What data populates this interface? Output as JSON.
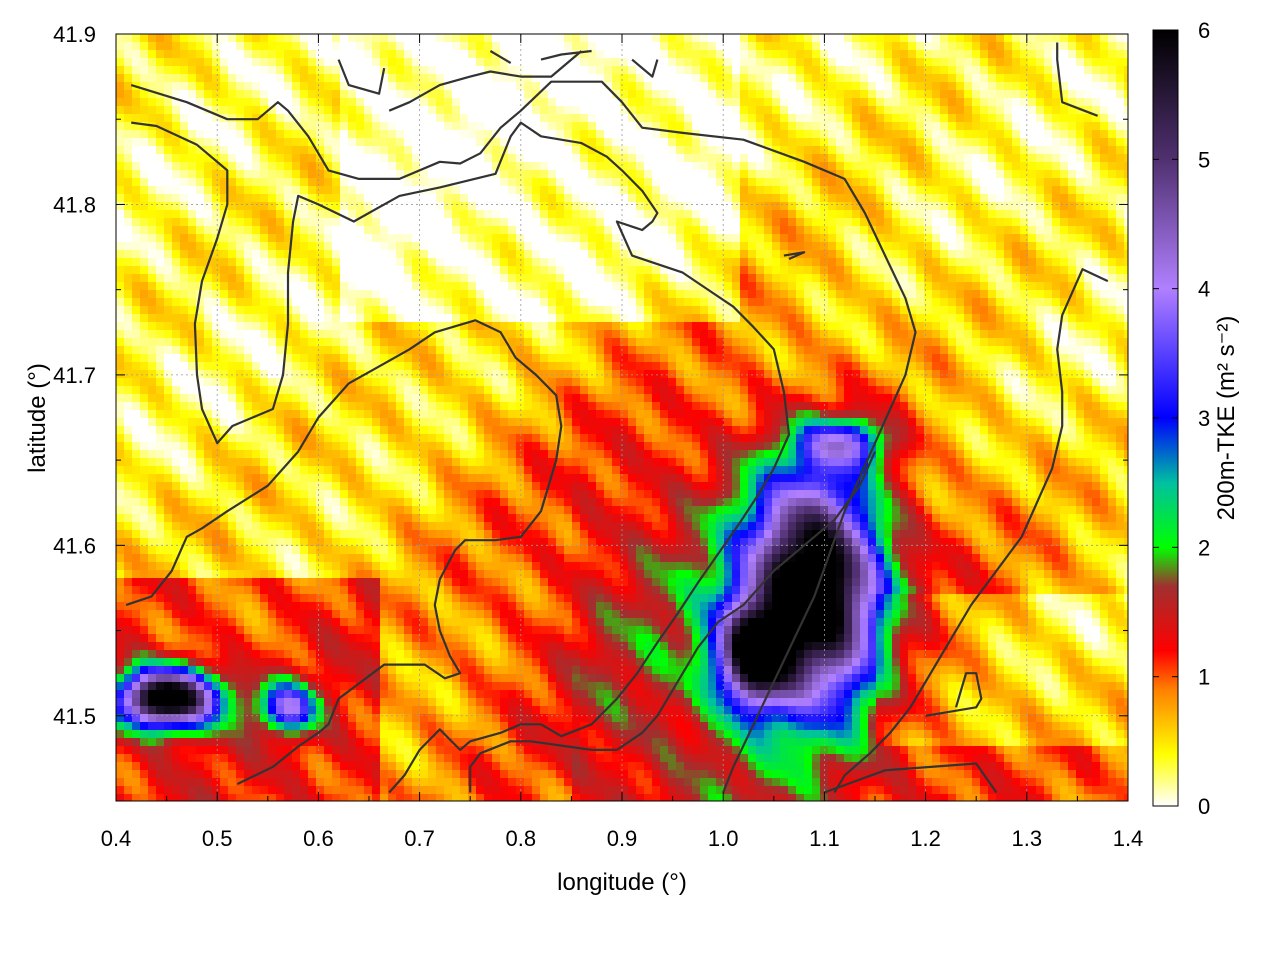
{
  "chart_data": {
    "type": "heatmap",
    "xlabel": "longitude (°)",
    "ylabel": "latitude (°)",
    "xlim": [
      0.4,
      1.4
    ],
    "ylim": [
      41.45,
      41.9
    ],
    "x_ticks": [
      "0.4",
      "0.5",
      "0.6",
      "0.7",
      "0.8",
      "0.9",
      "1.0",
      "1.1",
      "1.2",
      "1.3",
      "1.4"
    ],
    "y_ticks": [
      "41.5",
      "41.6",
      "41.7",
      "41.8",
      "41.9"
    ],
    "grid": true,
    "colorbar": {
      "label": "200m-TKE (m² s⁻²)",
      "range": [
        0,
        6
      ],
      "ticks": [
        "0",
        "1",
        "2",
        "3",
        "4",
        "5",
        "6"
      ],
      "stops": [
        {
          "v": 0.0,
          "color": "#ffffff"
        },
        {
          "v": 0.4,
          "color": "#ffff00"
        },
        {
          "v": 0.9,
          "color": "#ff8000"
        },
        {
          "v": 1.2,
          "color": "#ff0000"
        },
        {
          "v": 1.7,
          "color": "#a03030"
        },
        {
          "v": 2.0,
          "color": "#00ff00"
        },
        {
          "v": 2.5,
          "color": "#00c0a0"
        },
        {
          "v": 3.0,
          "color": "#0000ff"
        },
        {
          "v": 4.0,
          "color": "#b080ff"
        },
        {
          "v": 5.0,
          "color": "#503070"
        },
        {
          "v": 6.0,
          "color": "#000000"
        }
      ]
    },
    "features": [
      {
        "lon": 1.09,
        "lat": 41.575,
        "peak": 5.6,
        "sx": 0.045,
        "sy": 0.045
      },
      {
        "lon": 1.03,
        "lat": 41.535,
        "peak": 4.3,
        "sx": 0.025,
        "sy": 0.02
      },
      {
        "lon": 0.45,
        "lat": 41.51,
        "peak": 5.8,
        "sx": 0.035,
        "sy": 0.012
      },
      {
        "lon": 0.57,
        "lat": 41.505,
        "peak": 2.6,
        "sx": 0.02,
        "sy": 0.01
      },
      {
        "lon": 1.12,
        "lat": 41.66,
        "peak": 2.2,
        "sx": 0.03,
        "sy": 0.01
      }
    ],
    "contours": [
      [
        [
          0.415,
          41.87
        ],
        [
          0.47,
          41.86
        ],
        [
          0.51,
          41.85
        ],
        [
          0.54,
          41.85
        ],
        [
          0.56,
          41.86
        ],
        [
          0.57,
          41.855
        ],
        [
          0.59,
          41.84
        ],
        [
          0.61,
          41.82
        ],
        [
          0.64,
          41.815
        ],
        [
          0.68,
          41.815
        ],
        [
          0.72,
          41.825
        ],
        [
          0.74,
          41.824
        ],
        [
          0.76,
          41.83
        ],
        [
          0.78,
          41.845
        ],
        [
          0.8,
          41.855
        ],
        [
          0.83,
          41.872
        ],
        [
          0.88,
          41.872
        ],
        [
          0.9,
          41.86
        ],
        [
          0.92,
          41.845
        ],
        [
          0.96,
          41.842
        ],
        [
          1.02,
          41.838
        ],
        [
          1.08,
          41.825
        ],
        [
          1.12,
          41.815
        ],
        [
          1.14,
          41.795
        ],
        [
          1.16,
          41.77
        ],
        [
          1.18,
          41.745
        ],
        [
          1.19,
          41.725
        ],
        [
          1.18,
          41.7
        ],
        [
          1.165,
          41.68
        ],
        [
          1.15,
          41.66
        ],
        [
          1.135,
          41.64
        ],
        [
          1.12,
          41.62
        ],
        [
          1.105,
          41.595
        ],
        [
          1.09,
          41.57
        ],
        [
          1.07,
          41.545
        ],
        [
          1.05,
          41.52
        ],
        [
          1.03,
          41.495
        ],
        [
          1.01,
          41.47
        ],
        [
          1.0,
          41.455
        ]
      ],
      [
        [
          0.415,
          41.848
        ],
        [
          0.44,
          41.846
        ],
        [
          0.48,
          41.835
        ],
        [
          0.51,
          41.82
        ],
        [
          0.51,
          41.8
        ],
        [
          0.5,
          41.78
        ],
        [
          0.485,
          41.755
        ],
        [
          0.478,
          41.73
        ],
        [
          0.48,
          41.7
        ],
        [
          0.485,
          41.68
        ],
        [
          0.5,
          41.66
        ],
        [
          0.515,
          41.67
        ],
        [
          0.535,
          41.675
        ],
        [
          0.555,
          41.68
        ],
        [
          0.565,
          41.7
        ],
        [
          0.57,
          41.73
        ],
        [
          0.57,
          41.76
        ],
        [
          0.575,
          41.79
        ],
        [
          0.58,
          41.805
        ],
        [
          0.6,
          41.8
        ],
        [
          0.635,
          41.79
        ],
        [
          0.68,
          41.805
        ],
        [
          0.72,
          41.81
        ],
        [
          0.775,
          41.818
        ],
        [
          0.79,
          41.84
        ],
        [
          0.8,
          41.848
        ],
        [
          0.82,
          41.84
        ],
        [
          0.86,
          41.836
        ],
        [
          0.885,
          41.828
        ],
        [
          0.9,
          41.82
        ],
        [
          0.92,
          41.808
        ],
        [
          0.935,
          41.795
        ],
        [
          0.93,
          41.79
        ],
        [
          0.92,
          41.785
        ],
        [
          0.895,
          41.79
        ],
        [
          0.91,
          41.77
        ],
        [
          0.96,
          41.76
        ],
        [
          0.99,
          41.748
        ],
        [
          1.01,
          41.74
        ],
        [
          1.03,
          41.728
        ],
        [
          1.05,
          41.715
        ],
        [
          1.06,
          41.69
        ],
        [
          1.065,
          41.665
        ],
        [
          1.05,
          41.645
        ],
        [
          1.035,
          41.63
        ],
        [
          1.015,
          41.612
        ],
        [
          0.995,
          41.595
        ],
        [
          0.975,
          41.578
        ],
        [
          0.955,
          41.56
        ],
        [
          0.935,
          41.543
        ],
        [
          0.915,
          41.525
        ],
        [
          0.895,
          41.51
        ],
        [
          0.87,
          41.495
        ],
        [
          0.84,
          41.488
        ],
        [
          0.82,
          41.495
        ],
        [
          0.8,
          41.495
        ],
        [
          0.78,
          41.49
        ],
        [
          0.75,
          41.485
        ],
        [
          0.74,
          41.48
        ],
        [
          0.72,
          41.492
        ],
        [
          0.7,
          41.48
        ],
        [
          0.685,
          41.465
        ],
        [
          0.67,
          41.455
        ]
      ],
      [
        [
          0.41,
          41.565
        ],
        [
          0.435,
          41.57
        ],
        [
          0.455,
          41.585
        ],
        [
          0.47,
          41.605
        ],
        [
          0.485,
          41.61
        ],
        [
          0.51,
          41.62
        ],
        [
          0.55,
          41.635
        ],
        [
          0.58,
          41.655
        ],
        [
          0.6,
          41.675
        ],
        [
          0.63,
          41.695
        ],
        [
          0.66,
          41.705
        ],
        [
          0.69,
          41.715
        ],
        [
          0.715,
          41.725
        ],
        [
          0.755,
          41.732
        ],
        [
          0.78,
          41.725
        ],
        [
          0.795,
          41.71
        ],
        [
          0.815,
          41.7
        ],
        [
          0.835,
          41.688
        ],
        [
          0.84,
          41.67
        ],
        [
          0.835,
          41.65
        ],
        [
          0.82,
          41.62
        ],
        [
          0.8,
          41.605
        ],
        [
          0.775,
          41.603
        ],
        [
          0.745,
          41.603
        ],
        [
          0.735,
          41.597
        ],
        [
          0.72,
          41.58
        ],
        [
          0.715,
          41.565
        ],
        [
          0.72,
          41.55
        ],
        [
          0.73,
          41.535
        ],
        [
          0.74,
          41.525
        ],
        [
          0.725,
          41.522
        ],
        [
          0.705,
          41.53
        ],
        [
          0.665,
          41.53
        ],
        [
          0.62,
          41.51
        ],
        [
          0.61,
          41.495
        ],
        [
          0.6,
          41.49
        ],
        [
          0.58,
          41.482
        ],
        [
          0.555,
          41.47
        ],
        [
          0.52,
          41.46
        ]
      ],
      [
        [
          0.75,
          41.455
        ],
        [
          0.75,
          41.47
        ],
        [
          0.76,
          41.478
        ],
        [
          0.79,
          41.485
        ],
        [
          0.81,
          41.485
        ],
        [
          0.87,
          41.48
        ],
        [
          0.895,
          41.48
        ],
        [
          0.92,
          41.49
        ],
        [
          0.935,
          41.5
        ],
        [
          0.955,
          41.52
        ],
        [
          0.975,
          41.54
        ],
        [
          0.995,
          41.555
        ],
        [
          1.02,
          41.565
        ],
        [
          1.05,
          41.585
        ],
        [
          1.08,
          41.6
        ],
        [
          1.11,
          41.615
        ],
        [
          1.135,
          41.635
        ],
        [
          1.15,
          41.655
        ]
      ],
      [
        [
          1.37,
          41.852
        ],
        [
          1.335,
          41.86
        ],
        [
          1.33,
          41.885
        ],
        [
          1.33,
          41.895
        ]
      ],
      [
        [
          1.38,
          41.755
        ],
        [
          1.355,
          41.762
        ],
        [
          1.335,
          41.735
        ],
        [
          1.33,
          41.715
        ],
        [
          1.335,
          41.69
        ],
        [
          1.335,
          41.67
        ],
        [
          1.325,
          41.645
        ],
        [
          1.31,
          41.625
        ],
        [
          1.295,
          41.605
        ],
        [
          1.27,
          41.585
        ],
        [
          1.245,
          41.565
        ],
        [
          1.225,
          41.545
        ],
        [
          1.205,
          41.525
        ],
        [
          1.185,
          41.505
        ],
        [
          1.165,
          41.49
        ],
        [
          1.145,
          41.478
        ],
        [
          1.12,
          41.465
        ],
        [
          1.11,
          41.455
        ]
      ],
      [
        [
          1.2,
          41.5
        ],
        [
          1.25,
          41.505
        ],
        [
          1.255,
          41.51
        ],
        [
          1.25,
          41.525
        ],
        [
          1.24,
          41.525
        ],
        [
          1.23,
          41.505
        ]
      ],
      [
        [
          1.1,
          41.455
        ],
        [
          1.16,
          41.468
        ],
        [
          1.25,
          41.472
        ],
        [
          1.27,
          41.455
        ]
      ],
      [
        [
          0.67,
          41.855
        ],
        [
          0.69,
          41.86
        ],
        [
          0.72,
          41.87
        ],
        [
          0.75,
          41.875
        ],
        [
          0.77,
          41.878
        ],
        [
          0.8,
          41.875
        ],
        [
          0.83,
          41.875
        ],
        [
          0.86,
          41.89
        ]
      ],
      [
        [
          0.62,
          41.885
        ],
        [
          0.63,
          41.87
        ],
        [
          0.66,
          41.865
        ],
        [
          0.665,
          41.88
        ]
      ],
      [
        [
          0.77,
          41.89
        ],
        [
          0.79,
          41.883
        ]
      ],
      [
        [
          0.82,
          41.885
        ],
        [
          0.84,
          41.888
        ],
        [
          0.87,
          41.89
        ]
      ],
      [
        [
          0.91,
          41.885
        ],
        [
          0.93,
          41.875
        ],
        [
          0.935,
          41.885
        ]
      ],
      [
        [
          1.06,
          41.77
        ],
        [
          1.08,
          41.772
        ],
        [
          1.065,
          41.768
        ]
      ]
    ]
  }
}
